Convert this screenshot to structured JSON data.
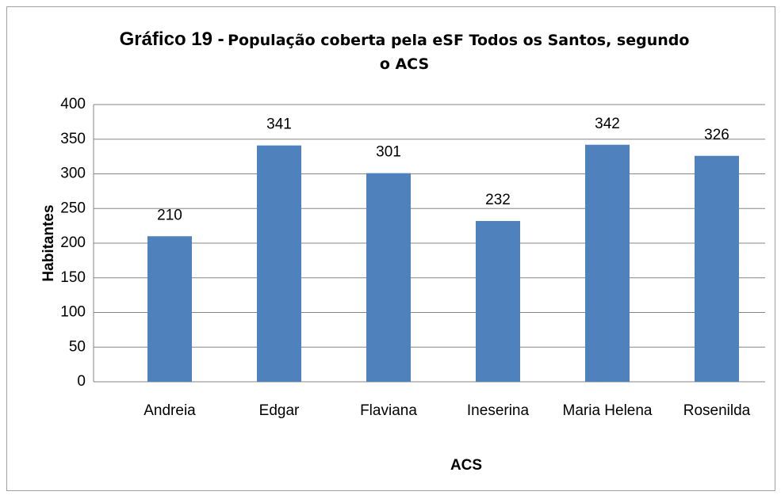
{
  "chart_data": {
    "type": "bar",
    "title": [
      "Gráfico 19 -",
      "População coberta pela eSF Todos os Santos, segundo o ACS"
    ],
    "x_label": "ACS",
    "y_label": "Habitantes",
    "categories": [
      "Andreia",
      "Edgar",
      "Flaviana",
      "Ineserina",
      "Maria Helena",
      "Rosenilda"
    ],
    "values": [
      210,
      341,
      301,
      232,
      342,
      326
    ],
    "color": "#4f81bd",
    "ylim": [
      0,
      400
    ],
    "yticks": [
      0,
      50,
      100,
      150,
      200,
      250,
      300,
      350,
      400
    ],
    "grid": true
  }
}
